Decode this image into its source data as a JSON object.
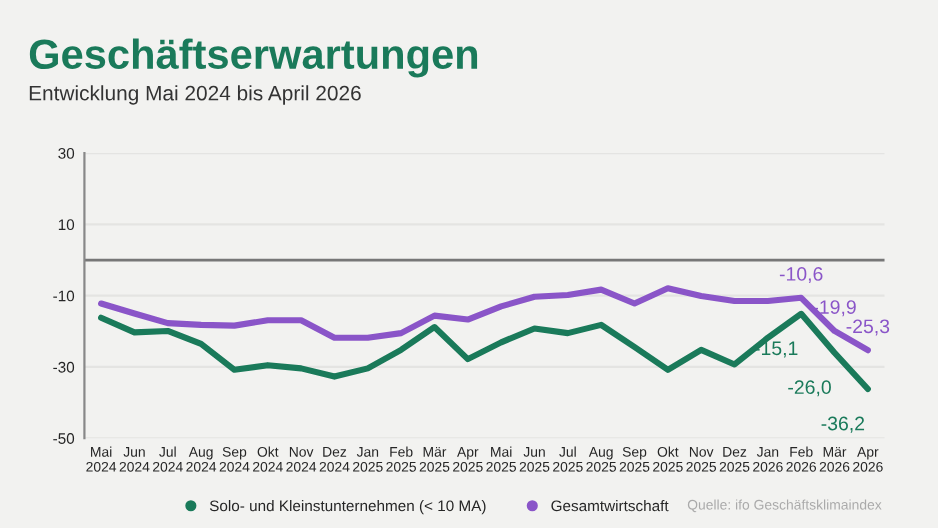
{
  "chart_data": {
    "type": "line",
    "title": "Geschäftserwartungen",
    "subtitle": "Entwicklung Mai 2024 bis April 2026",
    "categories": [
      "Mai\n2024",
      "Jun\n2024",
      "Jul\n2024",
      "Aug\n2024",
      "Sep\n2024",
      "Okt\n2024",
      "Nov\n2024",
      "Dez\n2024",
      "Jan\n2025",
      "Feb\n2025",
      "Mär\n2025",
      "Apr\n2025",
      "Mai\n2025",
      "Jun\n2025",
      "Jul\n2025",
      "Aug\n2025",
      "Sep\n2025",
      "Okt\n2025",
      "Nov\n2025",
      "Dez\n2025",
      "Jan\n2026",
      "Feb\n2026",
      "Mär\n2026",
      "Apr\n2026"
    ],
    "series": [
      {
        "name": "Solo- und Kleinstunternehmen (< 10 MA)",
        "color": "#1a7a5a",
        "values": [
          -16.2,
          -20.3,
          -19.9,
          -23.5,
          -30.8,
          -29.5,
          -30.4,
          -32.7,
          -30.4,
          -25.2,
          -18.8,
          -27.8,
          -23.1,
          -19.2,
          -20.5,
          -18.2,
          -24.4,
          -30.8,
          -25.2,
          -29.3,
          -21.8,
          -15.1,
          -26.0,
          -36.2
        ],
        "value_labels": [
          null,
          null,
          null,
          null,
          null,
          null,
          null,
          null,
          null,
          null,
          null,
          null,
          null,
          null,
          null,
          null,
          null,
          null,
          null,
          null,
          null,
          "-15,1",
          "-26,0",
          "-36,2"
        ]
      },
      {
        "name": "Gesamtwirtschaft",
        "color": "#8a55c8",
        "values": [
          -12.2,
          -15.0,
          -17.7,
          -18.2,
          -18.4,
          -16.9,
          -16.9,
          -21.8,
          -21.8,
          -20.5,
          -15.6,
          -16.7,
          -13.0,
          -10.3,
          -9.8,
          -8.3,
          -12.2,
          -7.9,
          -10.1,
          -11.5,
          -11.5,
          -10.6,
          -19.9,
          -25.3
        ],
        "value_labels": [
          null,
          null,
          null,
          null,
          null,
          null,
          null,
          null,
          null,
          null,
          null,
          null,
          null,
          null,
          null,
          null,
          null,
          null,
          null,
          null,
          null,
          "-10,6",
          "-19,9",
          "-25,3"
        ]
      }
    ],
    "ylim": [
      -50,
      30
    ],
    "yticks": [
      -50,
      -30,
      -10,
      10,
      30
    ],
    "grid": "y",
    "legend": "bottom",
    "line_style": "solid",
    "ref_lines": [
      {
        "axis": "y",
        "value": 0,
        "label": null,
        "color": "#777777"
      }
    ],
    "annotations": [
      "Quelle: ifo Geschäftsklimaindex"
    ]
  }
}
